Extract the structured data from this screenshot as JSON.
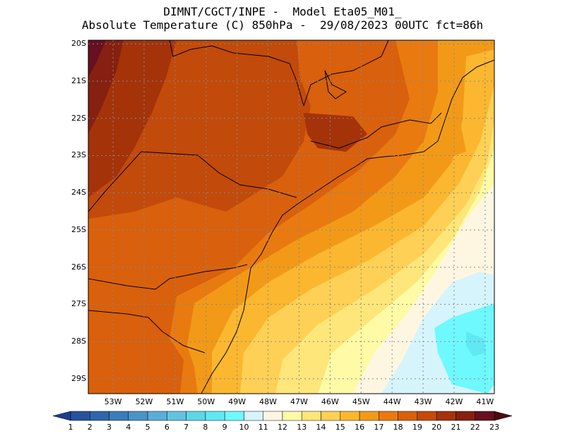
{
  "header": {
    "line1": "DIMNT/CGCT/INPE -  Model Eta05_M01_",
    "line2": "Absolute Temperature (C) 850hPa -  29/08/2023 00UTC fct=86h"
  },
  "axes": {
    "lat_labels": [
      "20S",
      "21S",
      "22S",
      "23S",
      "24S",
      "25S",
      "26S",
      "27S",
      "28S",
      "29S"
    ],
    "lon_labels": [
      "53W",
      "52W",
      "51W",
      "50W",
      "49W",
      "48W",
      "47W",
      "46W",
      "45W",
      "44W",
      "43W",
      "42W",
      "41W"
    ],
    "lat_range": [
      -29.4,
      -19.9
    ],
    "lon_range": [
      -53.8,
      -40.7
    ]
  },
  "colorbar": {
    "labels": [
      "1",
      "2",
      "3",
      "4",
      "5",
      "6",
      "7",
      "8",
      "9",
      "10",
      "11",
      "12",
      "13",
      "14",
      "15",
      "16",
      "17",
      "18",
      "19",
      "20",
      "21",
      "22",
      "23"
    ],
    "colors": [
      "#1e3d8f",
      "#26529c",
      "#2e66aa",
      "#3a7cba",
      "#4a93c9",
      "#5aaed6",
      "#63c3e0",
      "#5dd6e6",
      "#60e8f4",
      "#6ef9ff",
      "#d6f4fb",
      "#fff6e2",
      "#fffaa6",
      "#ffe67a",
      "#fed055",
      "#fbb72f",
      "#f29a17",
      "#e97a10",
      "#d9600c",
      "#c24a0a",
      "#a4330a",
      "#862010",
      "#661020",
      "#4a0a16"
    ]
  }
}
